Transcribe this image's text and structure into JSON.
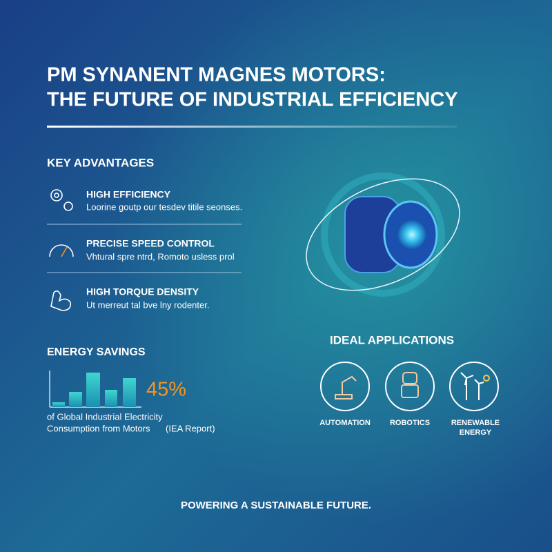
{
  "header": {
    "title_lines": [
      "PM SYNANENT MAGNES MOTORS:",
      "THE FUTURE OF INDUSTRIAL EFFICIENCY"
    ]
  },
  "advantages": {
    "heading": "KEY ADVANTAGES",
    "items": [
      {
        "title": "HIGH EFFICIENCY",
        "text": "Loorine goutp our tesdev titile seonses."
      },
      {
        "title": "PRECISE SPEED CONTROL",
        "text": "Vhtural spre ntrd, Romoto usless prol"
      },
      {
        "title": "HIGH TORQUE DENSITY",
        "text": "Ut merreut tal bve lny rodenter."
      }
    ]
  },
  "energy": {
    "heading": "ENERGY SAVINGS",
    "stat": "45%",
    "caption_lines": [
      "of Global Industrial Electricity",
      "Consumption from Motors"
    ],
    "source": "(IEA Report)"
  },
  "applications": {
    "heading": "IDEAL APPLICATIONS",
    "items": [
      [
        "AUTOMATION"
      ],
      [
        "ROBOTICS"
      ],
      [
        "RENEWABLE",
        "ENERGY"
      ]
    ]
  },
  "footer": {
    "tagline": "POWERING A SUSTAINABLE FUTURE."
  }
}
